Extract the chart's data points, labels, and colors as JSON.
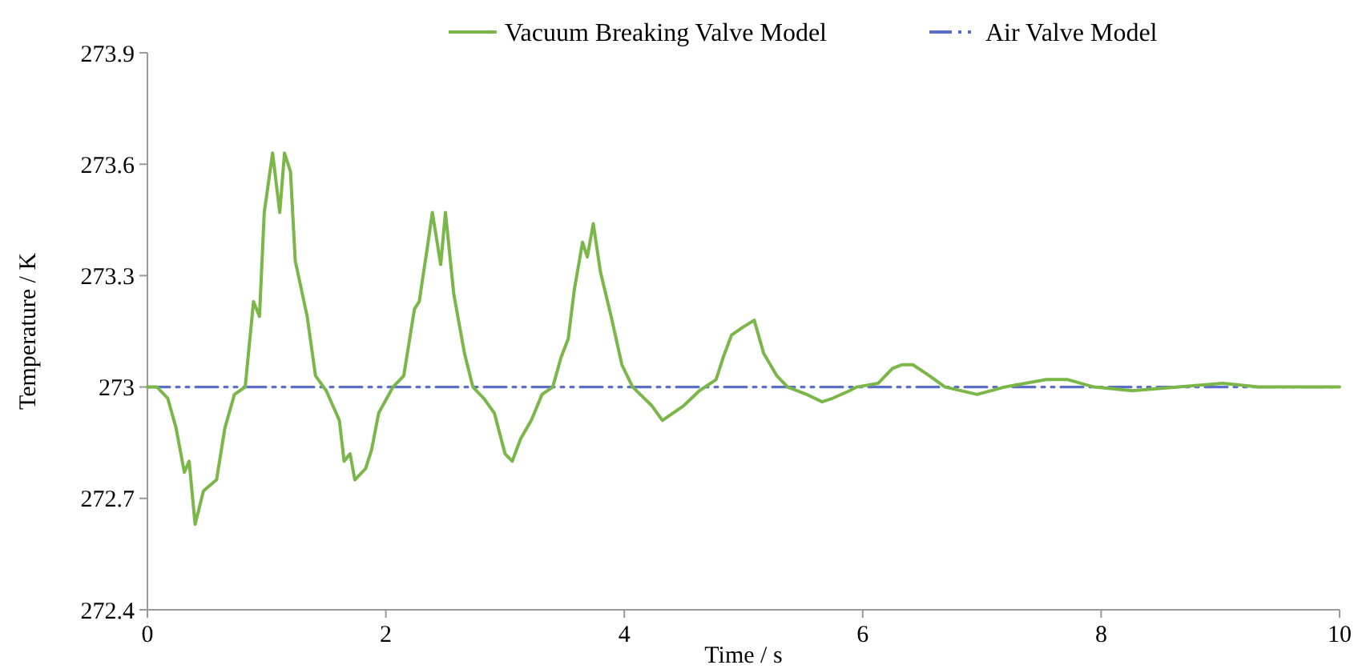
{
  "chart_data": {
    "type": "line",
    "xlabel": "Time / s",
    "ylabel": "Temperature / K",
    "xlim": [
      0,
      10
    ],
    "xticks": [
      0,
      2,
      4,
      6,
      8,
      10
    ],
    "ylim": [
      272.4,
      273.9
    ],
    "yticks": [
      272.4,
      272.7,
      273,
      273.3,
      273.6,
      273.9
    ],
    "grid": false,
    "legend": "top",
    "series": [
      {
        "name": "Vacuum Breaking Valve Model",
        "color": "#7ab648",
        "line_style": "solid",
        "x": [
          0,
          0.08,
          0.17,
          0.24,
          0.31,
          0.35,
          0.4,
          0.47,
          0.58,
          0.65,
          0.73,
          0.82,
          0.89,
          0.94,
          0.98,
          1.05,
          1.11,
          1.15,
          1.2,
          1.24,
          1.34,
          1.41,
          1.5,
          1.61,
          1.65,
          1.7,
          1.74,
          1.83,
          1.88,
          1.94,
          2.06,
          2.15,
          2.24,
          2.28,
          2.35,
          2.39,
          2.46,
          2.5,
          2.57,
          2.66,
          2.73,
          2.82,
          2.91,
          3.0,
          3.06,
          3.13,
          3.22,
          3.31,
          3.4,
          3.47,
          3.53,
          3.58,
          3.65,
          3.69,
          3.74,
          3.8,
          3.89,
          3.98,
          4.07,
          4.23,
          4.32,
          4.5,
          4.63,
          4.77,
          4.83,
          4.9,
          4.99,
          5.09,
          5.17,
          5.28,
          5.37,
          5.53,
          5.66,
          5.75,
          5.89,
          5.95,
          6.13,
          6.25,
          6.33,
          6.42,
          6.56,
          6.69,
          6.96,
          7.19,
          7.54,
          7.72,
          7.94,
          8.26,
          8.65,
          9.02,
          9.32,
          10
        ],
        "values": [
          273,
          273,
          272.97,
          272.89,
          272.77,
          272.8,
          272.63,
          272.72,
          272.75,
          272.89,
          272.98,
          273,
          273.23,
          273.19,
          273.47,
          273.63,
          273.47,
          273.63,
          273.58,
          273.34,
          273.19,
          273.03,
          272.99,
          272.91,
          272.8,
          272.82,
          272.75,
          272.78,
          272.83,
          272.93,
          273,
          273.03,
          273.21,
          273.23,
          273.38,
          273.47,
          273.33,
          273.47,
          273.25,
          273.09,
          273,
          272.97,
          272.93,
          272.82,
          272.8,
          272.86,
          272.91,
          272.98,
          273,
          273.08,
          273.13,
          273.26,
          273.39,
          273.35,
          273.44,
          273.31,
          273.19,
          273.06,
          273,
          272.95,
          272.91,
          272.95,
          272.99,
          273.02,
          273.08,
          273.14,
          273.16,
          273.18,
          273.09,
          273.03,
          273,
          272.98,
          272.96,
          272.97,
          272.99,
          273,
          273.01,
          273.05,
          273.06,
          273.06,
          273.03,
          273,
          272.98,
          273,
          273.02,
          273.02,
          273,
          272.99,
          273,
          273.01,
          273,
          273
        ]
      },
      {
        "name": "Air Valve Model",
        "color": "#5b6fc8",
        "line_style": "dashed",
        "x": [
          0,
          10
        ],
        "values": [
          273,
          273
        ]
      }
    ]
  }
}
